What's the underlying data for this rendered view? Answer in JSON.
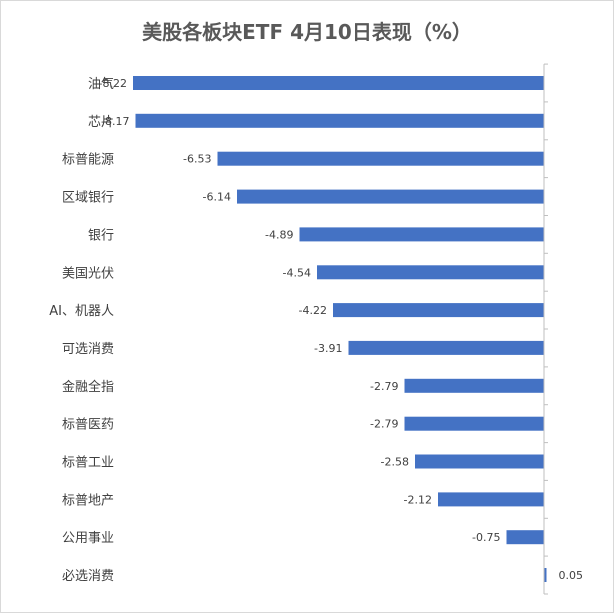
{
  "chart_data": {
    "type": "bar",
    "orientation": "horizontal",
    "title": "美股各板块ETF 4月10日表现（%）",
    "categories": [
      "油气",
      "芯片",
      "标普能源",
      "区域银行",
      "银行",
      "美国光伏",
      "AI、机器人",
      "可选消费",
      "金融全指",
      "标普医药",
      "标普工业",
      "标普地产",
      "公用事业",
      "必选消费"
    ],
    "values": [
      -8.22,
      -8.17,
      -6.53,
      -6.14,
      -4.89,
      -4.54,
      -4.22,
      -3.91,
      -2.79,
      -2.79,
      -2.58,
      -2.12,
      -0.75,
      0.05
    ],
    "value_labels": [
      "-8.22",
      "-8.17",
      "-6.53",
      "-6.14",
      "-4.89",
      "-4.54",
      "-4.22",
      "-3.91",
      "-2.79",
      "-2.79",
      "-2.58",
      "-2.12",
      "-0.75",
      "0.05"
    ],
    "bar_color": "#4472C4",
    "axis_color": "#bfbfbf",
    "grid": false,
    "legend": "none",
    "data_labels": true
  }
}
